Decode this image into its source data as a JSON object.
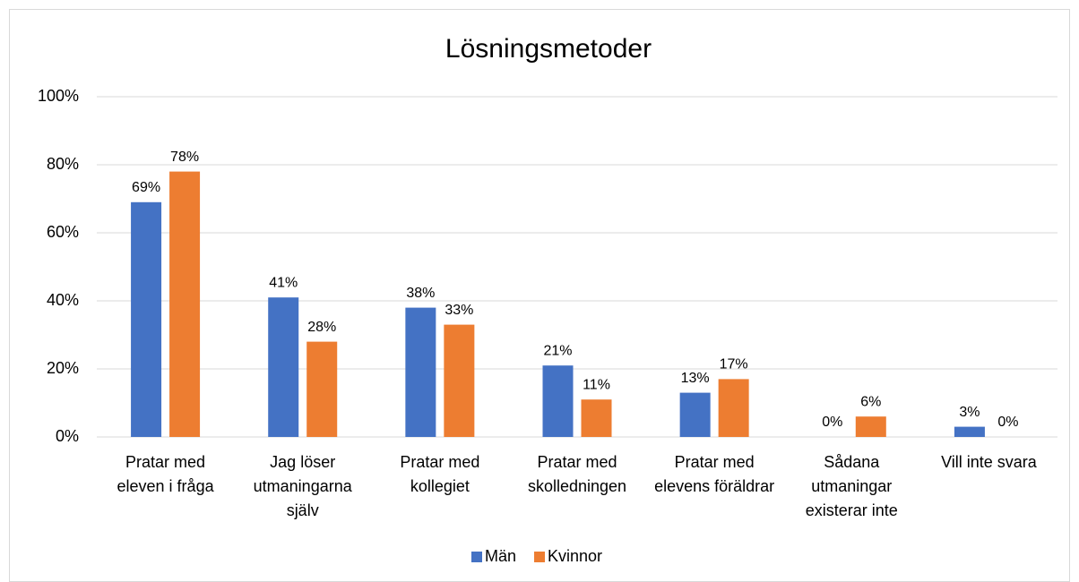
{
  "chart_data": {
    "type": "bar",
    "title": "Lösningsmetoder",
    "categories": [
      "Pratar med eleven i fråga",
      "Jag löser utmaningarna själv",
      "Pratar med kollegiet",
      "Pratar med skolledningen",
      "Pratar med elevens föräldrar",
      "Sådana utmaningar existerar inte",
      "Vill inte svara"
    ],
    "series": [
      {
        "name": "Män",
        "color": "#4472c4",
        "values": [
          69,
          41,
          38,
          21,
          13,
          0,
          3
        ],
        "value_labels": [
          "69%",
          "41%",
          "38%",
          "21%",
          "13%",
          "0%",
          "3%"
        ]
      },
      {
        "name": "Kvinnor",
        "color": "#ed7d31",
        "values": [
          78,
          28,
          33,
          11,
          17,
          6,
          0
        ],
        "value_labels": [
          "78%",
          "28%",
          "33%",
          "11%",
          "17%",
          "6%",
          "0%"
        ]
      }
    ],
    "ylim": [
      0,
      100
    ],
    "yticks": [
      {
        "value": 0,
        "label": "0%"
      },
      {
        "value": 20,
        "label": "20%"
      },
      {
        "value": 40,
        "label": "40%"
      },
      {
        "value": 60,
        "label": "60%"
      },
      {
        "value": 80,
        "label": "80%"
      },
      {
        "value": 100,
        "label": "100%"
      }
    ],
    "grid": true,
    "legend": "bottom"
  }
}
